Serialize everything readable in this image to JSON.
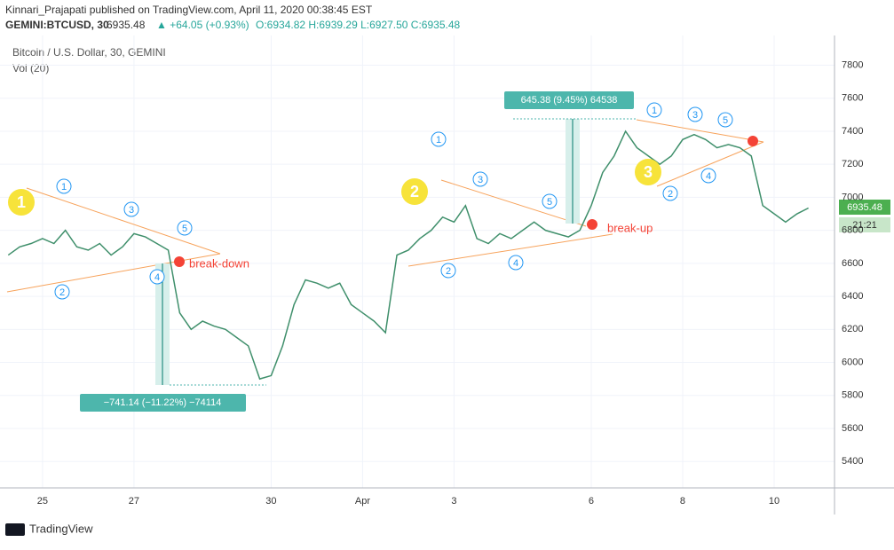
{
  "header": {
    "publisher": "Kinnari_Prajapati published on TradingView.com, April 11, 2020 00:38:45 EST",
    "symbol": "GEMINI:BTCUSD, 30",
    "last": "6935.48",
    "change": "▲ +64.05 (+0.93%)",
    "ohlc": "O:6934.82 H:6939.29 L:6927.50 C:6935.48"
  },
  "chart_data": {
    "type": "line",
    "title": "Bitcoin / U.S. Dollar, 30, GEMINI",
    "subtitle": "Vol (20)",
    "x": [
      24.25,
      24.5,
      24.75,
      25,
      25.25,
      25.5,
      25.75,
      26,
      26.25,
      26.5,
      26.75,
      27,
      27.25,
      27.5,
      27.75,
      28,
      28.25,
      28.5,
      28.75,
      29,
      29.25,
      29.5,
      29.75,
      30,
      30.25,
      30.5,
      30.75,
      31,
      31.25,
      31.5,
      31.75,
      32,
      32.25,
      32.5,
      32.75,
      33,
      33.25,
      33.5,
      33.75,
      34,
      34.25,
      34.5,
      34.75,
      35,
      35.25,
      35.5,
      35.75,
      36,
      36.25,
      36.5,
      36.75,
      37,
      37.25,
      37.5,
      37.75,
      38,
      38.25,
      38.5,
      38.75,
      39,
      39.25,
      39.5,
      39.75,
      40,
      40.25,
      40.5,
      40.75,
      41,
      41.25,
      41.5,
      41.75
    ],
    "series": [
      {
        "name": "BTCUSD",
        "color": "#3f8f6b",
        "values": [
          6650,
          6700,
          6720,
          6750,
          6720,
          6800,
          6700,
          6680,
          6720,
          6650,
          6700,
          6780,
          6760,
          6720,
          6680,
          6300,
          6200,
          6250,
          6220,
          6200,
          6150,
          6100,
          5900,
          5920,
          6100,
          6350,
          6500,
          6480,
          6450,
          6480,
          6350,
          6300,
          6250,
          6180,
          6650,
          6680,
          6750,
          6800,
          6880,
          6850,
          6950,
          6750,
          6720,
          6780,
          6750,
          6800,
          6850,
          6800,
          6780,
          6760,
          6800,
          6950,
          7150,
          7250,
          7400,
          7300,
          7250,
          7200,
          7250,
          7350,
          7380,
          7350,
          7300,
          7320,
          7300,
          7250,
          6950,
          6900,
          6850,
          6900,
          6935
        ]
      }
    ],
    "xlim": [
      24.07,
      42.32
    ],
    "xticks": [
      {
        "value": 25,
        "label": "25"
      },
      {
        "value": 27,
        "label": "27"
      },
      {
        "value": 30,
        "label": "30"
      },
      {
        "value": 32,
        "label": "Apr"
      },
      {
        "value": 34,
        "label": "3"
      },
      {
        "value": 37,
        "label": "6"
      },
      {
        "value": 39,
        "label": "8"
      },
      {
        "value": 41,
        "label": "10"
      }
    ],
    "ylim": [
      5240,
      7980
    ],
    "yticks": [
      5400,
      5600,
      5800,
      6000,
      6200,
      6400,
      6600,
      6800,
      7000,
      7200,
      7400,
      7600,
      7800
    ],
    "grid": true,
    "last_price_label": "6935.48",
    "countdown": "21:21",
    "annotations": {
      "break_down": "break-down",
      "break_up": "break-up",
      "measure_up": "645.38 (9.45%) 64538",
      "measure_down": "−741.14 (−11.22%) −74114",
      "patterns": [
        "1",
        "2",
        "3"
      ],
      "waves": [
        "1",
        "2",
        "3",
        "4",
        "5"
      ]
    }
  },
  "footer": {
    "brand": "TradingView"
  }
}
